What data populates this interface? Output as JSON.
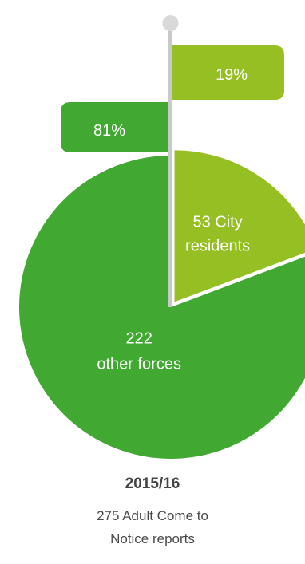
{
  "chart_data": {
    "type": "pie",
    "total": 275,
    "slices": [
      {
        "value": 53,
        "value_label": "53 City",
        "category_label": "residents",
        "percent_label": "19%",
        "color": "#95bf23"
      },
      {
        "value": 222,
        "value_label": "222",
        "category_label": "other forces",
        "percent_label": "81%",
        "color": "#41a832"
      }
    ],
    "pin_color": "#c9c9c9",
    "pin_head_color": "#d9d9d9"
  },
  "caption": {
    "year": "2015/16",
    "line1": "275 Adult Come to",
    "line2": "Notice reports"
  }
}
